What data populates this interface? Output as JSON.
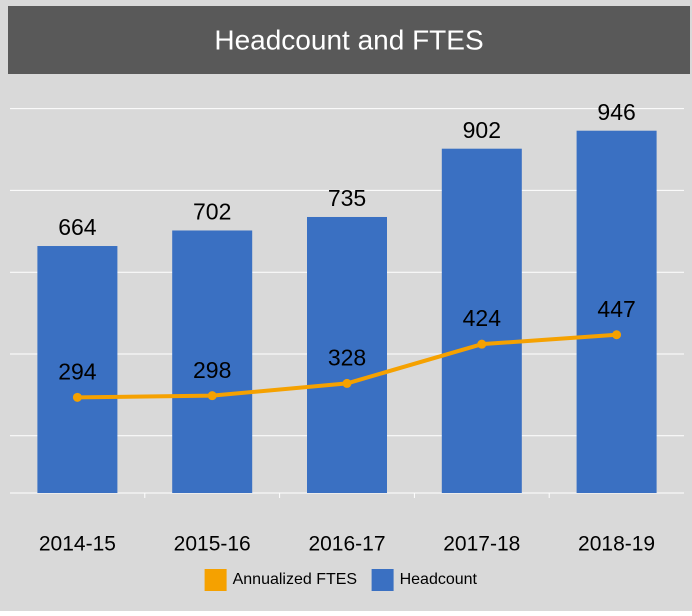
{
  "chart_data": {
    "type": "bar",
    "title": "Headcount and FTES",
    "categories": [
      "2014-15",
      "2015-16",
      "2016-17",
      "2017-18",
      "2018-19"
    ],
    "series": [
      {
        "name": "Annualized FTES",
        "type": "line",
        "color": "#f5a100",
        "values": [
          294,
          298,
          328,
          424,
          447
        ]
      },
      {
        "name": "Headcount",
        "type": "bar",
        "color": "#3a70c2",
        "values": [
          664,
          702,
          735,
          902,
          946
        ]
      }
    ],
    "ylim": [
      60,
      1070
    ],
    "yticks": [
      200,
      400,
      600,
      800,
      1000
    ],
    "grid": true,
    "legend": "bottom"
  }
}
